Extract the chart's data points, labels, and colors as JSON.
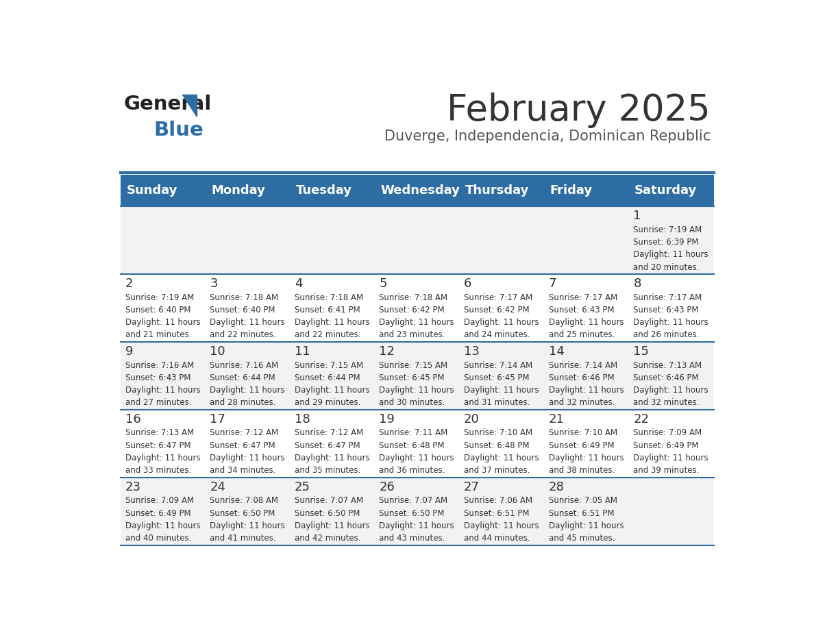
{
  "title": "February 2025",
  "subtitle": "Duverge, Independencia, Dominican Republic",
  "days_of_week": [
    "Sunday",
    "Monday",
    "Tuesday",
    "Wednesday",
    "Thursday",
    "Friday",
    "Saturday"
  ],
  "header_bg": "#2E6DA4",
  "header_text": "#FFFFFF",
  "cell_bg_even": "#F2F2F2",
  "cell_bg_odd": "#FFFFFF",
  "cell_text": "#333333",
  "divider_color": "#2E6DA4",
  "title_color": "#333333",
  "subtitle_color": "#555555",
  "logo_general_color": "#222222",
  "logo_blue_color": "#2E6DA4",
  "calendar_data": [
    {
      "day": 1,
      "col": 6,
      "row": 0,
      "sunrise": "7:19 AM",
      "sunset": "6:39 PM",
      "daylight_hours": 11,
      "daylight_minutes": 20
    },
    {
      "day": 2,
      "col": 0,
      "row": 1,
      "sunrise": "7:19 AM",
      "sunset": "6:40 PM",
      "daylight_hours": 11,
      "daylight_minutes": 21
    },
    {
      "day": 3,
      "col": 1,
      "row": 1,
      "sunrise": "7:18 AM",
      "sunset": "6:40 PM",
      "daylight_hours": 11,
      "daylight_minutes": 22
    },
    {
      "day": 4,
      "col": 2,
      "row": 1,
      "sunrise": "7:18 AM",
      "sunset": "6:41 PM",
      "daylight_hours": 11,
      "daylight_minutes": 22
    },
    {
      "day": 5,
      "col": 3,
      "row": 1,
      "sunrise": "7:18 AM",
      "sunset": "6:42 PM",
      "daylight_hours": 11,
      "daylight_minutes": 23
    },
    {
      "day": 6,
      "col": 4,
      "row": 1,
      "sunrise": "7:17 AM",
      "sunset": "6:42 PM",
      "daylight_hours": 11,
      "daylight_minutes": 24
    },
    {
      "day": 7,
      "col": 5,
      "row": 1,
      "sunrise": "7:17 AM",
      "sunset": "6:43 PM",
      "daylight_hours": 11,
      "daylight_minutes": 25
    },
    {
      "day": 8,
      "col": 6,
      "row": 1,
      "sunrise": "7:17 AM",
      "sunset": "6:43 PM",
      "daylight_hours": 11,
      "daylight_minutes": 26
    },
    {
      "day": 9,
      "col": 0,
      "row": 2,
      "sunrise": "7:16 AM",
      "sunset": "6:43 PM",
      "daylight_hours": 11,
      "daylight_minutes": 27
    },
    {
      "day": 10,
      "col": 1,
      "row": 2,
      "sunrise": "7:16 AM",
      "sunset": "6:44 PM",
      "daylight_hours": 11,
      "daylight_minutes": 28
    },
    {
      "day": 11,
      "col": 2,
      "row": 2,
      "sunrise": "7:15 AM",
      "sunset": "6:44 PM",
      "daylight_hours": 11,
      "daylight_minutes": 29
    },
    {
      "day": 12,
      "col": 3,
      "row": 2,
      "sunrise": "7:15 AM",
      "sunset": "6:45 PM",
      "daylight_hours": 11,
      "daylight_minutes": 30
    },
    {
      "day": 13,
      "col": 4,
      "row": 2,
      "sunrise": "7:14 AM",
      "sunset": "6:45 PM",
      "daylight_hours": 11,
      "daylight_minutes": 31
    },
    {
      "day": 14,
      "col": 5,
      "row": 2,
      "sunrise": "7:14 AM",
      "sunset": "6:46 PM",
      "daylight_hours": 11,
      "daylight_minutes": 32
    },
    {
      "day": 15,
      "col": 6,
      "row": 2,
      "sunrise": "7:13 AM",
      "sunset": "6:46 PM",
      "daylight_hours": 11,
      "daylight_minutes": 32
    },
    {
      "day": 16,
      "col": 0,
      "row": 3,
      "sunrise": "7:13 AM",
      "sunset": "6:47 PM",
      "daylight_hours": 11,
      "daylight_minutes": 33
    },
    {
      "day": 17,
      "col": 1,
      "row": 3,
      "sunrise": "7:12 AM",
      "sunset": "6:47 PM",
      "daylight_hours": 11,
      "daylight_minutes": 34
    },
    {
      "day": 18,
      "col": 2,
      "row": 3,
      "sunrise": "7:12 AM",
      "sunset": "6:47 PM",
      "daylight_hours": 11,
      "daylight_minutes": 35
    },
    {
      "day": 19,
      "col": 3,
      "row": 3,
      "sunrise": "7:11 AM",
      "sunset": "6:48 PM",
      "daylight_hours": 11,
      "daylight_minutes": 36
    },
    {
      "day": 20,
      "col": 4,
      "row": 3,
      "sunrise": "7:10 AM",
      "sunset": "6:48 PM",
      "daylight_hours": 11,
      "daylight_minutes": 37
    },
    {
      "day": 21,
      "col": 5,
      "row": 3,
      "sunrise": "7:10 AM",
      "sunset": "6:49 PM",
      "daylight_hours": 11,
      "daylight_minutes": 38
    },
    {
      "day": 22,
      "col": 6,
      "row": 3,
      "sunrise": "7:09 AM",
      "sunset": "6:49 PM",
      "daylight_hours": 11,
      "daylight_minutes": 39
    },
    {
      "day": 23,
      "col": 0,
      "row": 4,
      "sunrise": "7:09 AM",
      "sunset": "6:49 PM",
      "daylight_hours": 11,
      "daylight_minutes": 40
    },
    {
      "day": 24,
      "col": 1,
      "row": 4,
      "sunrise": "7:08 AM",
      "sunset": "6:50 PM",
      "daylight_hours": 11,
      "daylight_minutes": 41
    },
    {
      "day": 25,
      "col": 2,
      "row": 4,
      "sunrise": "7:07 AM",
      "sunset": "6:50 PM",
      "daylight_hours": 11,
      "daylight_minutes": 42
    },
    {
      "day": 26,
      "col": 3,
      "row": 4,
      "sunrise": "7:07 AM",
      "sunset": "6:50 PM",
      "daylight_hours": 11,
      "daylight_minutes": 43
    },
    {
      "day": 27,
      "col": 4,
      "row": 4,
      "sunrise": "7:06 AM",
      "sunset": "6:51 PM",
      "daylight_hours": 11,
      "daylight_minutes": 44
    },
    {
      "day": 28,
      "col": 5,
      "row": 4,
      "sunrise": "7:05 AM",
      "sunset": "6:51 PM",
      "daylight_hours": 11,
      "daylight_minutes": 45
    }
  ],
  "num_rows": 5,
  "num_cols": 7
}
